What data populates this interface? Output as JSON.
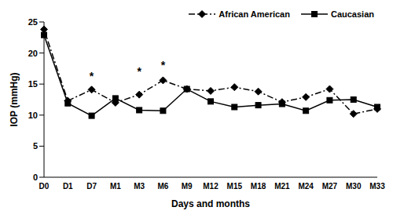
{
  "chart_data": {
    "type": "line",
    "x_label": "Days and months",
    "y_label": "IOP (mmHg)",
    "categories": [
      "D0",
      "D1",
      "D7",
      "M1",
      "M3",
      "M6",
      "M9",
      "M12",
      "M15",
      "M18",
      "M21",
      "M24",
      "M27",
      "M30",
      "M33"
    ],
    "series": [
      {
        "name": "African American",
        "color": "#000000",
        "marker": "diamond",
        "line_style": "dashdot",
        "values": [
          23.8,
          12.3,
          14.1,
          12.0,
          13.3,
          15.6,
          14.2,
          13.9,
          14.5,
          13.8,
          12.1,
          12.9,
          14.2,
          10.2,
          11.0
        ]
      },
      {
        "name": "Caucasian",
        "color": "#000000",
        "marker": "square",
        "line_style": "solid",
        "values": [
          22.9,
          11.9,
          9.9,
          12.7,
          10.8,
          10.7,
          14.2,
          12.2,
          11.3,
          11.6,
          11.8,
          10.7,
          12.4,
          12.5,
          11.3
        ]
      }
    ],
    "ylim": [
      0,
      25
    ],
    "yticks": [
      0,
      5,
      10,
      15,
      20,
      25
    ],
    "grid": false,
    "legend": "top-right",
    "annotations": [
      {
        "text": "*",
        "x": "D7",
        "y": 16.3
      },
      {
        "text": "*",
        "x": "M3",
        "y": 17.0
      },
      {
        "text": "*",
        "x": "M6",
        "y": 18.0
      }
    ]
  }
}
